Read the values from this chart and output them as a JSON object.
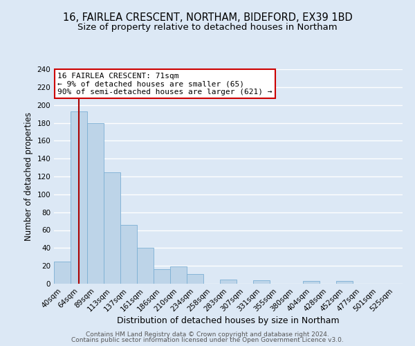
{
  "title1": "16, FAIRLEA CRESCENT, NORTHAM, BIDEFORD, EX39 1BD",
  "title2": "Size of property relative to detached houses in Northam",
  "xlabel": "Distribution of detached houses by size in Northam",
  "ylabel": "Number of detached properties",
  "bar_labels": [
    "40sqm",
    "64sqm",
    "89sqm",
    "113sqm",
    "137sqm",
    "161sqm",
    "186sqm",
    "210sqm",
    "234sqm",
    "258sqm",
    "283sqm",
    "307sqm",
    "331sqm",
    "355sqm",
    "380sqm",
    "404sqm",
    "428sqm",
    "452sqm",
    "477sqm",
    "501sqm",
    "525sqm"
  ],
  "bar_values": [
    25,
    193,
    180,
    125,
    66,
    40,
    16,
    19,
    11,
    0,
    5,
    0,
    4,
    0,
    0,
    3,
    0,
    3,
    0,
    0,
    0
  ],
  "bar_color": "#bdd4e8",
  "bar_edge_color": "#7bafd4",
  "vline_x_index": 1,
  "vline_color": "#aa0000",
  "annotation_text": "16 FAIRLEA CRESCENT: 71sqm\n← 9% of detached houses are smaller (65)\n90% of semi-detached houses are larger (621) →",
  "annotation_box_facecolor": "#ffffff",
  "annotation_box_edgecolor": "#cc0000",
  "ylim": [
    0,
    240
  ],
  "yticks": [
    0,
    20,
    40,
    60,
    80,
    100,
    120,
    140,
    160,
    180,
    200,
    220,
    240
  ],
  "bg_color": "#dce8f5",
  "plot_bg_color": "#dce8f5",
  "grid_color": "#ffffff",
  "title1_fontsize": 10.5,
  "title2_fontsize": 9.5,
  "xlabel_fontsize": 9,
  "ylabel_fontsize": 8.5,
  "tick_fontsize": 7.5,
  "annotation_fontsize": 8,
  "footer_fontsize": 6.5,
  "footer_line1": "Contains HM Land Registry data © Crown copyright and database right 2024.",
  "footer_line2": "Contains public sector information licensed under the Open Government Licence v3.0."
}
